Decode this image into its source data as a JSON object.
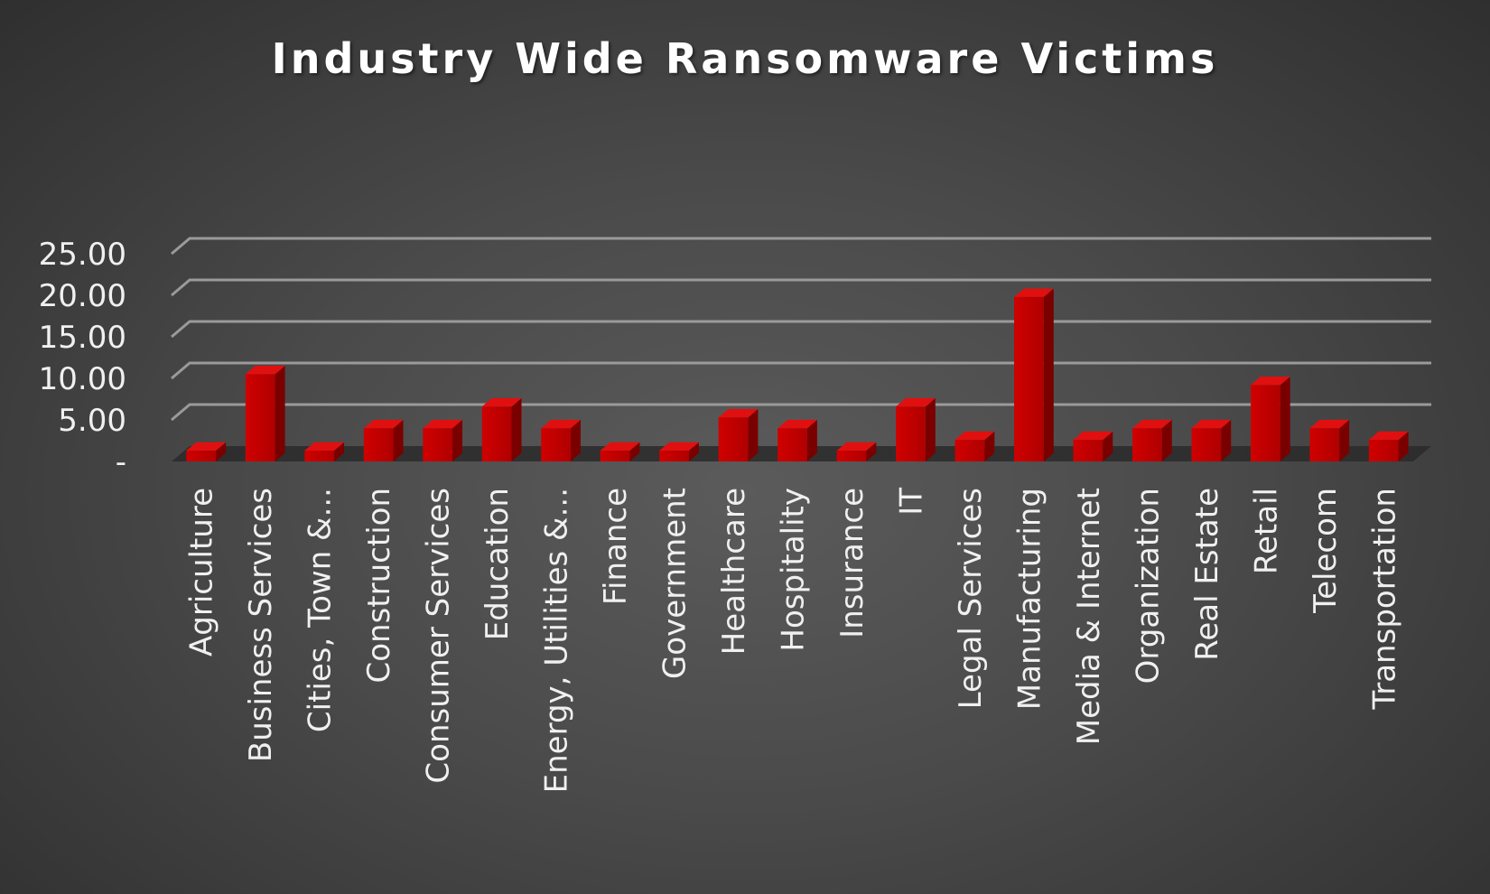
{
  "chart_data": {
    "type": "bar",
    "title": "Industry Wide Ransomware Victims",
    "categories": [
      "Agriculture",
      "Business Services",
      "Cities, Town &...",
      "Construction",
      "Consumer Services",
      "Education",
      "Energy, Utilities &...",
      "Finance",
      "Government",
      "Healthcare",
      "Hospitality",
      "Insurance",
      "IT",
      "Legal Services",
      "Manufacturing",
      "Media & Internet",
      "Organization",
      "Real Estate",
      "Retail",
      "Telecom",
      "Transportation"
    ],
    "values": [
      1.3,
      10.5,
      1.3,
      4.0,
      4.0,
      6.6,
      4.0,
      1.3,
      1.3,
      5.3,
      4.0,
      1.3,
      6.6,
      2.6,
      19.8,
      2.6,
      4.0,
      4.0,
      9.2,
      4.0,
      2.6
    ],
    "ylim": [
      0,
      25
    ],
    "yticks": [
      0,
      5,
      10,
      15,
      20,
      25
    ],
    "ytick_labels": [
      "-",
      "5.00",
      "10.00",
      "15.00",
      "20.00",
      "25.00"
    ],
    "grid": true,
    "bar_color": "#c00000"
  }
}
